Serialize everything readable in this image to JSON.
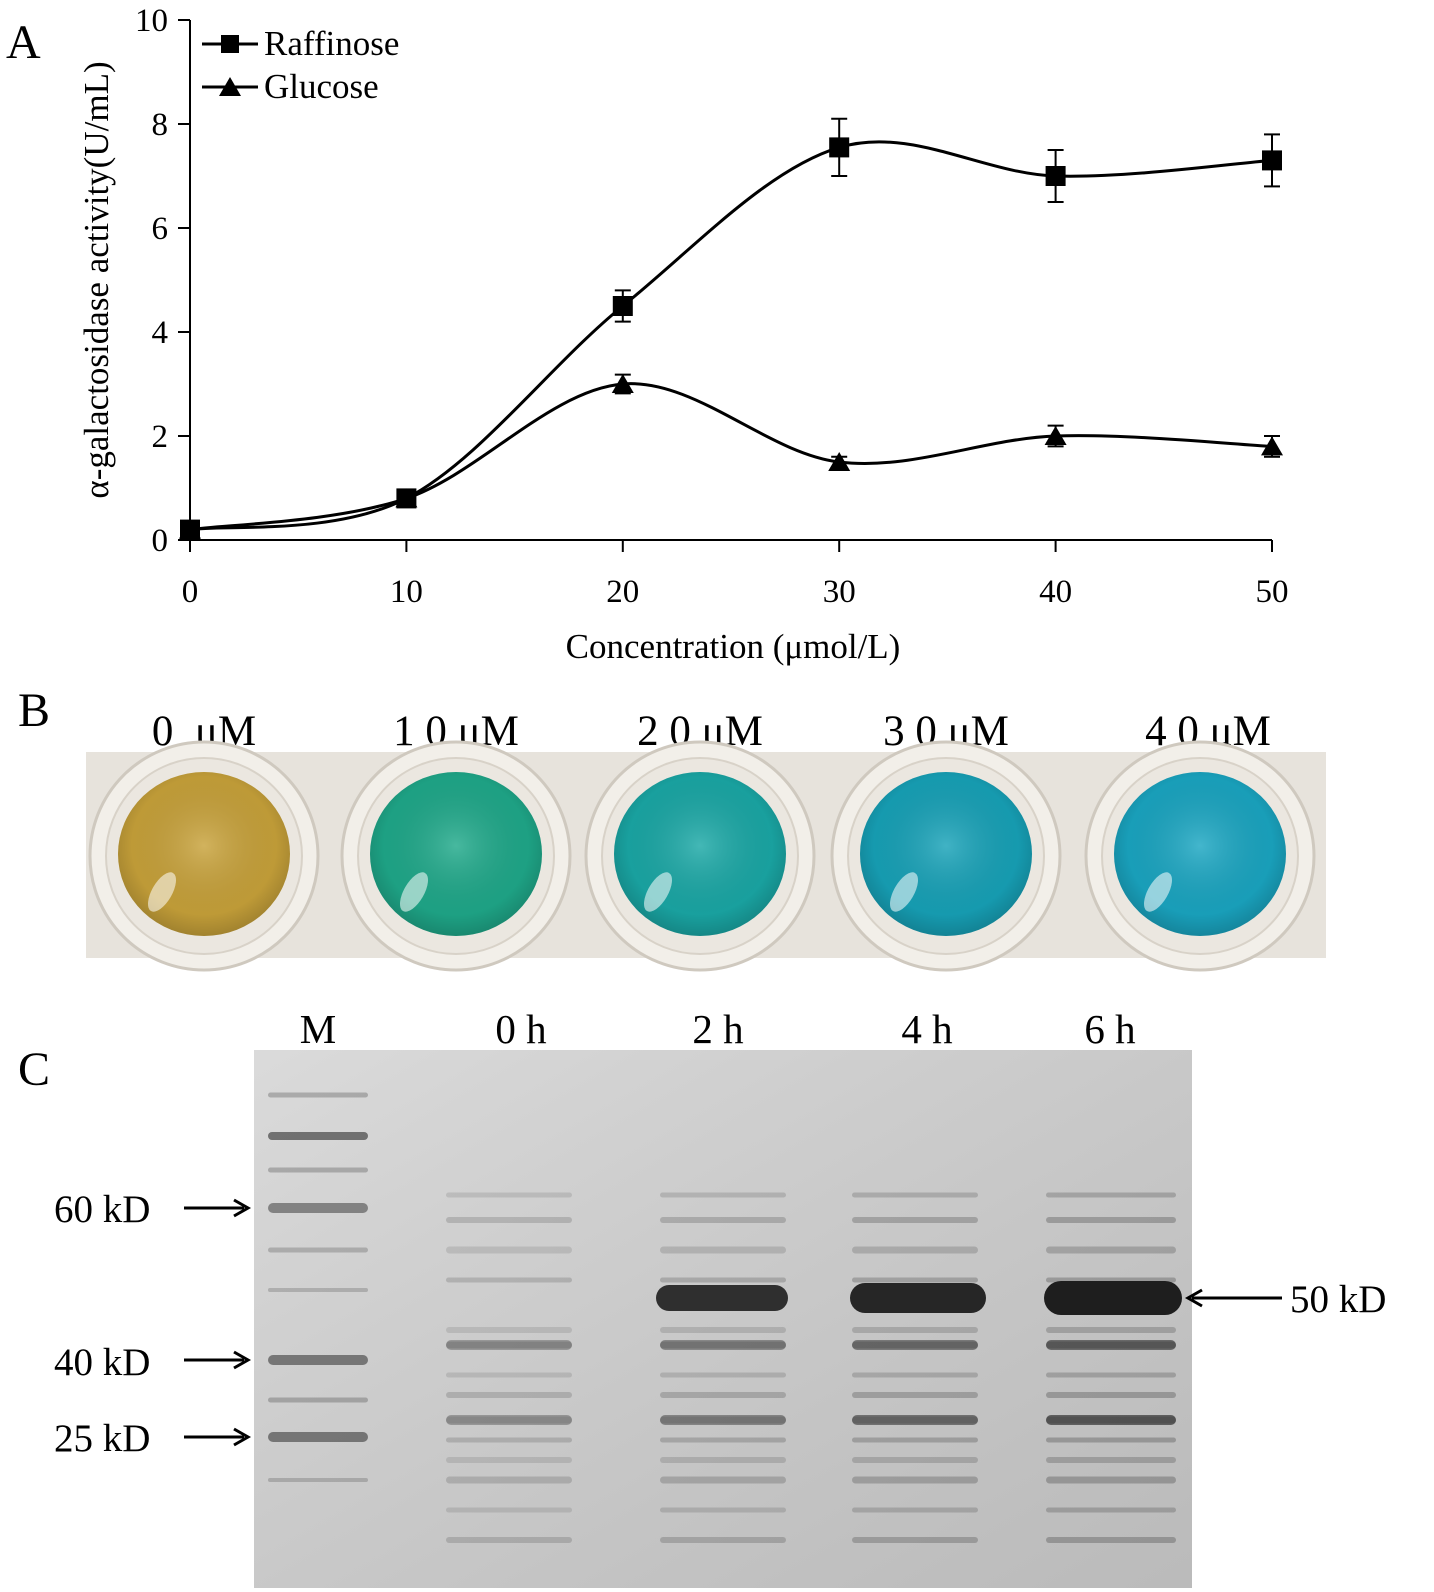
{
  "panels": {
    "a": {
      "letter": "A"
    },
    "b": {
      "letter": "B",
      "wells": [
        {
          "label": "0  μM",
          "color": "#c8a23a"
        },
        {
          "label": "1 0 μM",
          "color": "#1fa98a"
        },
        {
          "label": "2 0 μM",
          "color": "#1aa8a6"
        },
        {
          "label": "3 0 μM",
          "color": "#17a2b8"
        },
        {
          "label": "4 0 μM",
          "color": "#1aa6c2"
        }
      ],
      "plate_color": "#e7e3dc"
    },
    "c": {
      "letter": "C",
      "lanes": [
        "M",
        "0 h",
        "2 h",
        "4 h",
        "6 h"
      ],
      "markers_left": [
        "60 kD",
        "40 kD",
        "25 kD"
      ],
      "marker_right": "50 kD",
      "gel_color": "#d4d4d4"
    }
  },
  "chart_data": {
    "type": "line",
    "title": "",
    "xlabel": "Concentration (μmol/L)",
    "ylabel": "α-galactosidase activity(U/mL)",
    "xlim": [
      0,
      50
    ],
    "ylim": [
      0,
      10
    ],
    "x_ticks": [
      0,
      10,
      20,
      30,
      40,
      50
    ],
    "y_ticks": [
      0,
      2,
      4,
      6,
      8,
      10
    ],
    "x": [
      0,
      10,
      20,
      30,
      40,
      50
    ],
    "legend_position": "top-left",
    "series": [
      {
        "name": "Raffinose",
        "marker": "square",
        "values": [
          0.2,
          0.8,
          4.5,
          7.55,
          7.0,
          7.3
        ],
        "errors": [
          0.0,
          0.0,
          0.3,
          0.55,
          0.5,
          0.5
        ]
      },
      {
        "name": "Glucose",
        "marker": "triangle",
        "values": [
          0.2,
          0.8,
          3.0,
          1.5,
          2.0,
          1.8
        ],
        "errors": [
          0.0,
          0.0,
          0.18,
          0.1,
          0.2,
          0.2
        ]
      }
    ]
  }
}
